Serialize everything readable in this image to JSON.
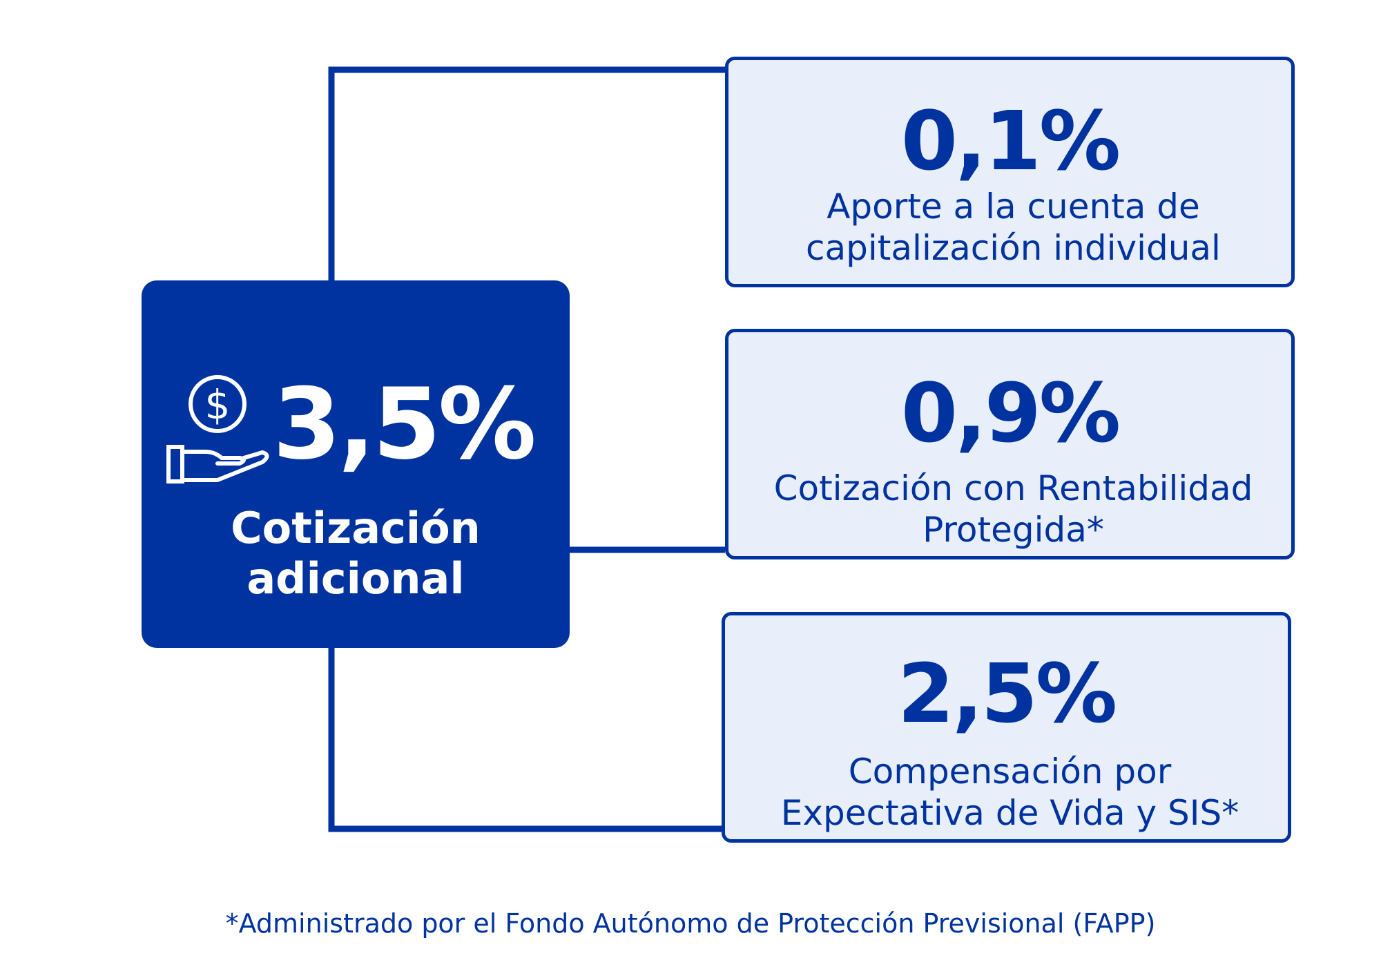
{
  "main": {
    "value": "3,5%",
    "label": "Cotización adicional",
    "icon": "hand-holding-dollar-icon"
  },
  "items": [
    {
      "value": "0,1%",
      "label": "Aporte a la cuenta de capitalización individual"
    },
    {
      "value": "0,9%",
      "label": "Cotización con Rentabilidad Protegida*"
    },
    {
      "value": "2,5%",
      "label": "Compensación por Expectativa de Vida y SIS*"
    }
  ],
  "footnote": "*Administrado por el Fondo Autónomo de Protección Previsional (FAPP)",
  "colors": {
    "primary": "#0033A0",
    "box_fill": "#E8EEFA",
    "background": "#FFFFFF"
  }
}
